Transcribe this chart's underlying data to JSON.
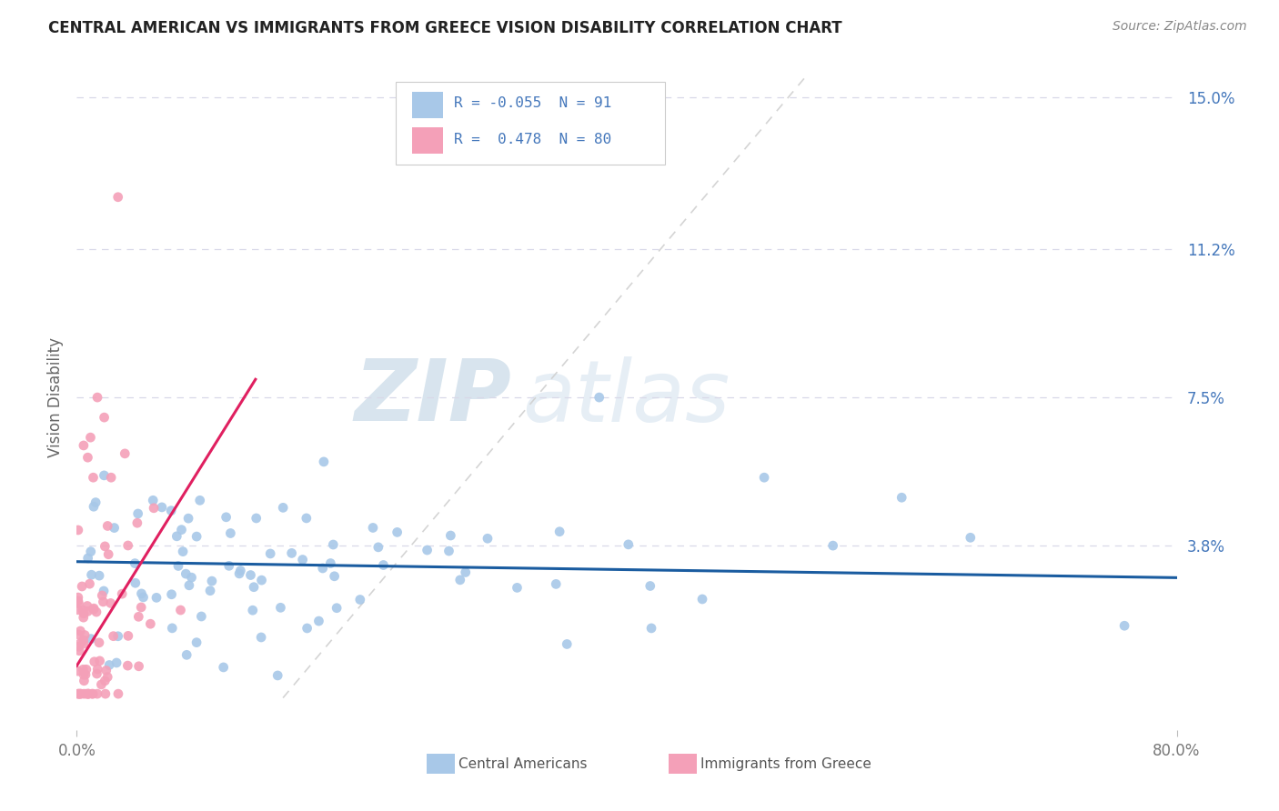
{
  "title": "CENTRAL AMERICAN VS IMMIGRANTS FROM GREECE VISION DISABILITY CORRELATION CHART",
  "source": "Source: ZipAtlas.com",
  "ylabel": "Vision Disability",
  "xlim": [
    0.0,
    0.8
  ],
  "ylim": [
    -0.008,
    0.158
  ],
  "ytick_vals": [
    0.038,
    0.075,
    0.112,
    0.15
  ],
  "ytick_labels": [
    "3.8%",
    "7.5%",
    "11.2%",
    "15.0%"
  ],
  "xtick_vals": [
    0.0,
    0.8
  ],
  "xtick_labels": [
    "0.0%",
    "80.0%"
  ],
  "series1_color": "#a8c8e8",
  "series2_color": "#f4a0b8",
  "trend1_color": "#1a5ca0",
  "trend2_color": "#e02060",
  "refline_color": "#d0d0d0",
  "watermark_zip": "ZIP",
  "watermark_atlas": "atlas",
  "background_color": "#ffffff",
  "grid_color": "#d8d8e8",
  "legend_r1_val": "-0.055",
  "legend_n1_val": "91",
  "legend_r2_val": "0.478",
  "legend_n2_val": "80",
  "title_color": "#222222",
  "source_color": "#888888",
  "axis_color": "#4477bb",
  "ylabel_color": "#666666"
}
